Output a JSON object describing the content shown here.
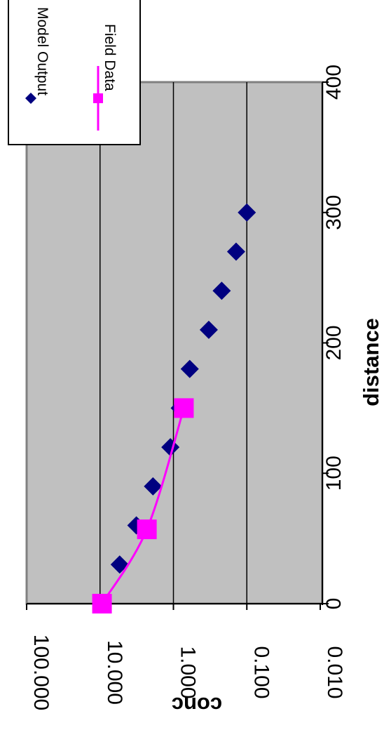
{
  "chart_data": {
    "type": "scatter",
    "xlabel": "distance",
    "ylabel": "conc",
    "xlim": [
      0,
      400
    ],
    "ylim": [
      0.01,
      100
    ],
    "y_scale": "log",
    "grid": "horizontal major gridlines",
    "plot_background": "#c0c0c0",
    "x_tick_labels": [
      "0",
      "100",
      "200",
      "300",
      "400"
    ],
    "y_tick_labels": [
      "0.010",
      "0.100",
      "1.000",
      "10.000",
      "100.000"
    ],
    "legend_position": "top-right",
    "series": [
      {
        "name": "Model Output",
        "style": "markers",
        "marker": "diamond",
        "color": "#000080",
        "x": [
          30,
          60,
          90,
          120,
          150,
          180,
          210,
          240,
          270,
          300
        ],
        "y": [
          5.4,
          3.2,
          1.9,
          1.1,
          0.82,
          0.6,
          0.33,
          0.22,
          0.14,
          0.1
        ]
      },
      {
        "name": "Field Data",
        "style": "line+markers",
        "marker": "square",
        "color": "#ff00ff",
        "x": [
          0,
          57,
          150
        ],
        "y": [
          9.4,
          2.3,
          0.72
        ]
      }
    ]
  }
}
